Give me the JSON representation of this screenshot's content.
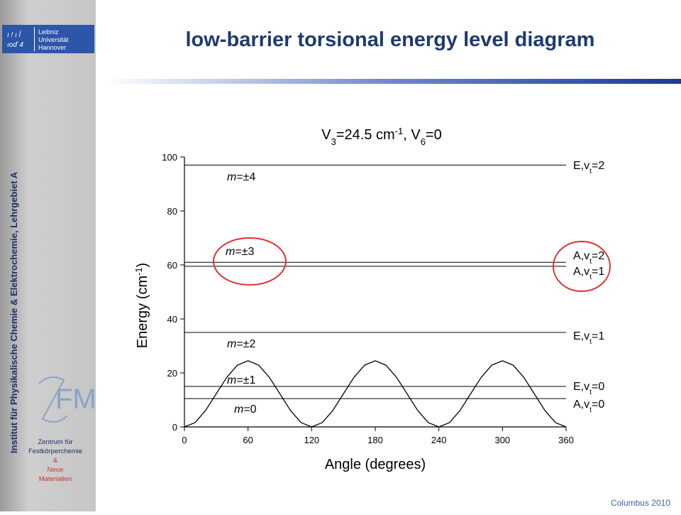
{
  "slide": {
    "title": "low-barrier torsional energy level diagram",
    "sidebar": "Institut für Physikalische Chemie & Elektrochemie, Lehrgebiet A",
    "logo": [
      "Leibniz",
      "Universität",
      "Hannover"
    ],
    "zfm": [
      "Zentrum für",
      "Festkörperchemie",
      "&",
      "Neue",
      "Materialien"
    ],
    "footer": "Columbus 2010"
  },
  "chart_data": {
    "type": "line",
    "title": [
      "V",
      "3",
      "=24.5 cm",
      "-1",
      ", V",
      "6",
      "=0"
    ],
    "xlabel": "Angle (degrees)",
    "ylabel": [
      "Energy (cm",
      "-1",
      ")"
    ],
    "x": [
      0,
      10,
      20,
      30,
      40,
      50,
      60,
      70,
      80,
      90,
      100,
      110,
      120,
      130,
      140,
      150,
      160,
      170,
      180,
      190,
      200,
      210,
      220,
      230,
      240,
      250,
      260,
      270,
      280,
      290,
      300,
      310,
      320,
      330,
      340,
      350,
      360
    ],
    "series": [
      {
        "color": "#000000",
        "values": [
          0,
          1.6,
          6.1,
          12.3,
          18.4,
          22.9,
          24.5,
          22.9,
          18.4,
          12.3,
          6.1,
          1.6,
          0,
          1.6,
          6.1,
          12.3,
          18.4,
          22.9,
          24.5,
          22.9,
          18.4,
          12.3,
          6.1,
          1.6,
          0,
          1.6,
          6.1,
          12.3,
          18.4,
          22.9,
          24.5,
          22.9,
          18.4,
          12.3,
          6.1,
          1.6,
          0
        ]
      }
    ],
    "levels": [
      {
        "value": 97,
        "label": [
          "E,v",
          "t",
          "=2"
        ]
      },
      {
        "value": 61,
        "label": [
          "A,v",
          "t",
          "=2"
        ]
      },
      {
        "value": 59.5,
        "label": [
          "A,v",
          "t",
          "=1"
        ]
      },
      {
        "value": 35,
        "label": [
          "E,v",
          "t",
          "=1"
        ]
      },
      {
        "value": 15,
        "label": [
          "E,v",
          "t",
          "=0"
        ]
      },
      {
        "value": 10.5,
        "label": [
          "A,v",
          "t",
          "=0"
        ]
      }
    ],
    "m_labels": [
      [
        "m",
        "=±4"
      ],
      [
        "m",
        "=±3"
      ],
      [
        "m",
        "=±2"
      ],
      [
        "m",
        "=±1"
      ],
      [
        "m",
        "=0"
      ]
    ],
    "xlim": [
      0,
      360
    ],
    "xticks": [
      0,
      60,
      120,
      180,
      240,
      300,
      360
    ],
    "ylim": [
      0,
      100
    ],
    "yticks": [
      0,
      20,
      40,
      60,
      80,
      100
    ]
  }
}
